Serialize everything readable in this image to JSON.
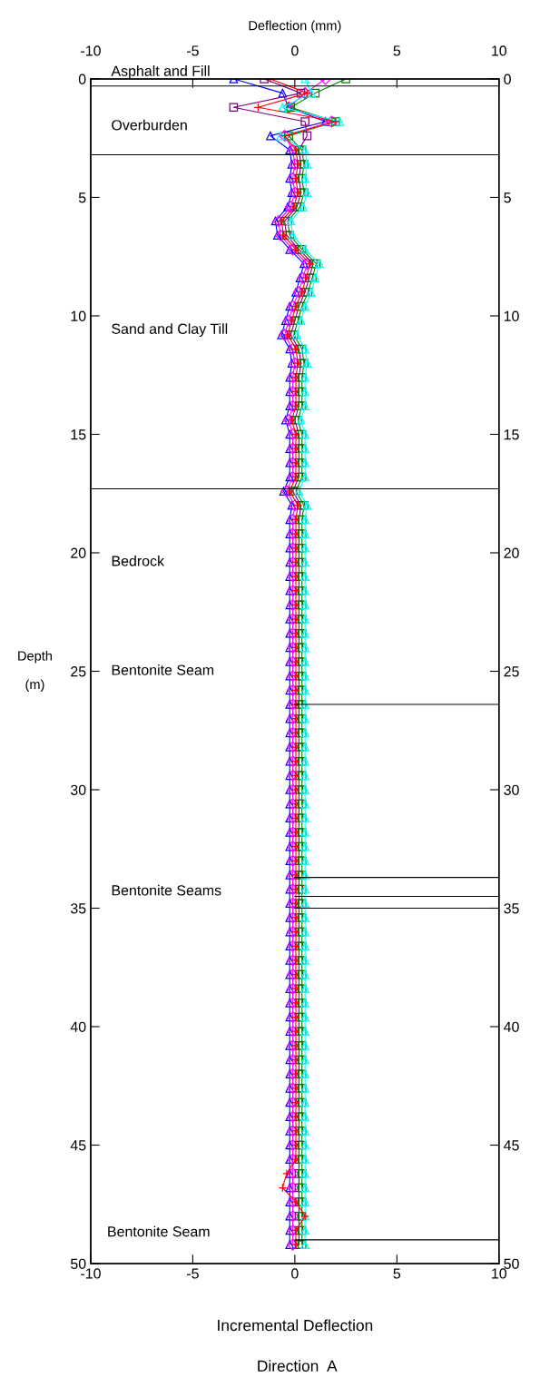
{
  "chart_data": {
    "type": "line",
    "x2label": "Deflection (mm)",
    "xlabel": "Incremental Deflection",
    "ylabel": "Depth\n\n(m)",
    "xlim": [
      -10,
      10
    ],
    "xticks": [
      -10,
      -5,
      0,
      5,
      10
    ],
    "x2lim": [
      -10,
      10
    ],
    "x2ticks": [
      -10,
      -5,
      0,
      5,
      10
    ],
    "ylim": [
      50,
      0
    ],
    "yticks": [
      0,
      5,
      10,
      15,
      20,
      25,
      30,
      35,
      40,
      45,
      50
    ],
    "y2lim": [
      50,
      0
    ],
    "y2ticks": [
      0,
      5,
      10,
      15,
      20,
      25,
      30,
      35,
      40,
      45,
      50
    ],
    "grid": false,
    "legend": false,
    "line_style": "solid",
    "series": [
      {
        "color": "#0000ff",
        "marker": "triangle",
        "values": [
          0,
          0.6,
          1.2,
          1.8,
          2.4,
          3,
          3.6,
          4.2,
          4.8,
          5.4,
          6,
          6.6,
          7.2,
          7.8,
          8.4,
          9,
          9.6,
          10.2,
          10.8,
          11.4,
          12,
          12.6,
          13.2,
          13.8,
          14.4,
          15,
          15.6,
          16.2,
          16.8,
          17.4,
          18,
          18.6,
          19.2,
          19.8,
          20.4,
          21,
          21.6,
          22.2,
          22.8,
          23.4,
          24,
          24.6,
          25.2,
          25.8,
          26.4,
          27,
          27.6,
          28.2,
          28.8,
          29.4,
          30,
          30.6,
          31.2,
          31.8,
          32.4,
          33,
          33.6,
          34.2,
          34.8,
          35.4,
          36,
          36.6,
          37.2,
          37.8,
          38.4,
          39,
          39.6,
          40.2,
          40.8,
          41.4,
          42,
          42.6,
          43.2,
          43.8,
          44.4,
          45,
          45.6,
          46.2,
          46.8,
          47.4,
          48,
          48.6,
          49.2
        ],
        "x": [
          -3.0,
          -0.6,
          -0.3,
          1.5,
          -1.2,
          -0.25,
          -0.15,
          -0.25,
          -0.15,
          -0.35,
          -0.95,
          -0.85,
          -0.25,
          0.45,
          0.25,
          0.05,
          -0.25,
          -0.45,
          -0.65,
          -0.25,
          -0.15,
          -0.25,
          -0.25,
          -0.25,
          -0.45,
          -0.25,
          -0.25,
          -0.25,
          -0.25,
          -0.55,
          -0.15,
          -0.25,
          -0.25,
          -0.25,
          -0.25,
          -0.25,
          -0.25,
          -0.25,
          -0.25,
          -0.25,
          -0.25,
          -0.25,
          -0.25,
          -0.25,
          -0.25,
          -0.25,
          -0.25,
          -0.25,
          -0.25,
          -0.25,
          -0.25,
          -0.25,
          -0.25,
          -0.25,
          -0.25,
          -0.25,
          -0.25,
          -0.25,
          -0.25,
          -0.25,
          -0.25,
          -0.25,
          -0.25,
          -0.25,
          -0.25,
          -0.25,
          -0.25,
          -0.25,
          -0.25,
          -0.25,
          -0.25,
          -0.25,
          -0.25,
          -0.25,
          -0.25,
          -0.25,
          -0.25,
          -0.25,
          -0.25,
          -0.25,
          -0.25,
          -0.25,
          -0.25
        ]
      },
      {
        "color": "#ff00ff",
        "marker": "diamond",
        "values": [
          0,
          0.6,
          1.2,
          1.8,
          2.4,
          3,
          3.6,
          4.2,
          4.8,
          5.4,
          6,
          6.6,
          7.2,
          7.8,
          8.4,
          9,
          9.6,
          10.2,
          10.8,
          11.4,
          12,
          12.6,
          13.2,
          13.8,
          14.4,
          15,
          15.6,
          16.2,
          16.8,
          17.4,
          18,
          18.6,
          19.2,
          19.8,
          20.4,
          21,
          21.6,
          22.2,
          22.8,
          23.4,
          24,
          24.6,
          25.2,
          25.8,
          26.4,
          27,
          27.6,
          28.2,
          28.8,
          29.4,
          30,
          30.6,
          31.2,
          31.8,
          32.4,
          33,
          33.6,
          34.2,
          34.8,
          35.4,
          36,
          36.6,
          37.2,
          37.8,
          38.4,
          39,
          39.6,
          40.2,
          40.8,
          41.4,
          42,
          42.6,
          43.2,
          43.8,
          44.4,
          45,
          45.6,
          46.2,
          46.8,
          47.4,
          48,
          48.6,
          49.2
        ],
        "x": [
          1.5,
          0.5,
          -0.3,
          1.8,
          -0.5,
          -0.1,
          0,
          -0.1,
          0,
          -0.2,
          -0.8,
          -0.7,
          -0.1,
          0.6,
          0.4,
          0.2,
          -0.1,
          -0.3,
          -0.5,
          -0.1,
          0,
          -0.1,
          -0.1,
          -0.1,
          -0.3,
          -0.1,
          -0.1,
          -0.1,
          -0.1,
          -0.4,
          0,
          -0.1,
          -0.1,
          -0.1,
          -0.1,
          -0.1,
          -0.1,
          -0.1,
          -0.1,
          -0.1,
          -0.1,
          -0.1,
          -0.1,
          -0.1,
          -0.1,
          -0.1,
          -0.1,
          -0.1,
          -0.1,
          -0.1,
          -0.1,
          -0.1,
          -0.1,
          -0.1,
          -0.1,
          -0.1,
          -0.1,
          -0.1,
          -0.1,
          -0.1,
          -0.1,
          -0.1,
          -0.1,
          -0.1,
          -0.1,
          -0.1,
          -0.1,
          -0.1,
          -0.1,
          -0.1,
          -0.1,
          -0.1,
          -0.1,
          -0.1,
          -0.1,
          -0.1,
          -0.1,
          -0.1,
          -0.1,
          -0.1,
          -0.1,
          -0.1,
          -0.1
        ]
      },
      {
        "color": "#800080",
        "marker": "square",
        "values": [
          0,
          0.6,
          1.2,
          1.8,
          2.4,
          3,
          3.6,
          4.2,
          4.8,
          5.4,
          6,
          6.6,
          7.2,
          7.8,
          8.4,
          9,
          9.6,
          10.2,
          10.8,
          11.4,
          12,
          12.6,
          13.2,
          13.8,
          14.4,
          15,
          15.6,
          16.2,
          16.8,
          17.4,
          18,
          18.6,
          19.2,
          19.8,
          20.4,
          21,
          21.6,
          22.2,
          22.8,
          23.4,
          24,
          24.6,
          25.2,
          25.8,
          26.4,
          27,
          27.6,
          28.2,
          28.8,
          29.4,
          30,
          30.6,
          31.2,
          31.8,
          32.4,
          33,
          33.6,
          34.2,
          34.8,
          35.4,
          36,
          36.6,
          37.2,
          37.8,
          38.4,
          39,
          39.6,
          40.2,
          40.8,
          41.4,
          42,
          42.6,
          43.2,
          43.8,
          44.4,
          45,
          45.6,
          46.2,
          46.8,
          47.4,
          48,
          48.6,
          49.2
        ],
        "x": [
          -1.5,
          0.3,
          -3.0,
          0.5,
          0.6,
          0.2,
          0.3,
          0.2,
          0.3,
          0.1,
          -0.5,
          -0.4,
          0.2,
          0.9,
          0.7,
          0.5,
          0.2,
          0,
          -0.2,
          0.2,
          0.3,
          0.2,
          0.2,
          0.2,
          0,
          0.2,
          0.2,
          0.2,
          0.2,
          -0.1,
          0.3,
          0.2,
          0.2,
          0.2,
          0.2,
          0.2,
          0.2,
          0.2,
          0.2,
          0.2,
          0.2,
          0.2,
          0.2,
          0.2,
          0.2,
          0.2,
          0.2,
          0.2,
          0.2,
          0.2,
          0.2,
          0.2,
          0.2,
          0.2,
          0.2,
          0.2,
          0.2,
          0.2,
          0.2,
          0.2,
          0.2,
          0.2,
          0.2,
          0.2,
          0.2,
          0.2,
          0.2,
          0.2,
          0.2,
          0.2,
          0.2,
          0.2,
          0.2,
          0.2,
          0.2,
          0.2,
          0.2,
          0.2,
          0.2,
          0.2,
          0.2,
          0.2,
          0.2
        ]
      },
      {
        "color": "#008000",
        "marker": "square",
        "values": [
          0,
          0.6,
          1.2,
          1.8,
          2.4,
          3,
          3.6,
          4.2,
          4.8,
          5.4,
          6,
          6.6,
          7.2,
          7.8,
          8.4,
          9,
          9.6,
          10.2,
          10.8,
          11.4,
          12,
          12.6,
          13.2,
          13.8,
          14.4,
          15,
          15.6,
          16.2,
          16.8,
          17.4,
          18,
          18.6,
          19.2,
          19.8,
          20.4,
          21,
          21.6,
          22.2,
          22.8,
          23.4,
          24,
          24.6,
          25.2,
          25.8,
          26.4,
          27,
          27.6,
          28.2,
          28.8,
          29.4,
          30,
          30.6,
          31.2,
          31.8,
          32.4,
          33,
          33.6,
          34.2,
          34.8,
          35.4,
          36,
          36.6,
          37.2,
          37.8,
          38.4,
          39,
          39.6,
          40.2,
          40.8,
          41.4,
          42,
          42.6,
          43.2,
          43.8,
          44.4,
          45,
          45.6,
          46.2,
          46.8,
          47.4,
          48,
          48.6,
          49.2
        ],
        "x": [
          2.5,
          1.0,
          -0.2,
          2.0,
          -0.3,
          0.35,
          0.45,
          0.35,
          0.45,
          0.25,
          -0.35,
          -0.25,
          0.35,
          1.05,
          0.85,
          0.65,
          0.35,
          0.15,
          -0.05,
          0.35,
          0.45,
          0.35,
          0.35,
          0.35,
          0.15,
          0.35,
          0.35,
          0.35,
          0.35,
          0.05,
          0.45,
          0.35,
          0.35,
          0.35,
          0.35,
          0.35,
          0.35,
          0.35,
          0.35,
          0.35,
          0.35,
          0.35,
          0.35,
          0.35,
          0.35,
          0.35,
          0.35,
          0.35,
          0.35,
          0.35,
          0.35,
          0.35,
          0.35,
          0.35,
          0.35,
          0.35,
          0.35,
          0.35,
          0.35,
          0.35,
          0.35,
          0.35,
          0.35,
          0.35,
          0.35,
          0.35,
          0.35,
          0.35,
          0.35,
          0.35,
          0.35,
          0.35,
          0.35,
          0.35,
          0.35,
          0.35,
          0.35,
          0.35,
          0.35,
          0.35,
          0.35,
          0.35,
          0.35
        ]
      },
      {
        "color": "#00ffff",
        "marker": "triangle",
        "values": [
          0,
          0.6,
          1.2,
          1.8,
          2.4,
          3,
          3.6,
          4.2,
          4.8,
          5.4,
          6,
          6.6,
          7.2,
          7.8,
          8.4,
          9,
          9.6,
          10.2,
          10.8,
          11.4,
          12,
          12.6,
          13.2,
          13.8,
          14.4,
          15,
          15.6,
          16.2,
          16.8,
          17.4,
          18,
          18.6,
          19.2,
          19.8,
          20.4,
          21,
          21.6,
          22.2,
          22.8,
          23.4,
          24,
          24.6,
          25.2,
          25.8,
          26.4,
          27,
          27.6,
          28.2,
          28.8,
          29.4,
          30,
          30.6,
          31.2,
          31.8,
          32.4,
          33,
          33.6,
          34.2,
          34.8,
          35.4,
          36,
          36.6,
          37.2,
          37.8,
          38.4,
          39,
          39.6,
          40.2,
          40.8,
          41.4,
          42,
          42.6,
          43.2,
          43.8,
          44.4,
          45,
          45.6,
          46.2,
          46.8,
          47.4,
          48,
          48.6,
          49.2
        ],
        "x": [
          0.5,
          0.8,
          -0.6,
          2.2,
          -0.7,
          0.5,
          0.6,
          0.5,
          0.6,
          0.4,
          -0.2,
          -0.1,
          0.5,
          1.2,
          1.0,
          0.8,
          0.5,
          0.3,
          0.1,
          0.5,
          0.6,
          0.5,
          0.5,
          0.5,
          0.3,
          0.5,
          0.5,
          0.5,
          0.5,
          0.2,
          0.6,
          0.5,
          0.5,
          0.5,
          0.5,
          0.5,
          0.5,
          0.5,
          0.5,
          0.5,
          0.5,
          0.5,
          0.5,
          0.5,
          0.5,
          0.5,
          0.5,
          0.5,
          0.5,
          0.5,
          0.5,
          0.5,
          0.5,
          0.5,
          0.5,
          0.5,
          0.5,
          0.5,
          0.5,
          0.5,
          0.5,
          0.5,
          0.5,
          0.5,
          0.5,
          0.5,
          0.5,
          0.5,
          0.5,
          0.5,
          0.5,
          0.5,
          0.5,
          0.5,
          0.5,
          0.5,
          0.5,
          0.5,
          0.5,
          0.5,
          0.5,
          0.5,
          0.5
        ]
      },
      {
        "color": "#ff0000",
        "marker": "cross",
        "values": [
          0,
          0.6,
          1.2,
          1.8,
          2.4,
          3,
          3.6,
          4.2,
          4.8,
          5.4,
          6,
          6.6,
          7.2,
          7.8,
          8.4,
          9,
          9.6,
          10.2,
          10.8,
          11.4,
          12,
          12.6,
          13.2,
          13.8,
          14.4,
          15,
          15.6,
          16.2,
          16.8,
          17.4,
          18,
          18.6,
          19.2,
          19.8,
          20.4,
          21,
          21.6,
          22.2,
          22.8,
          23.4,
          24,
          24.6,
          25.2,
          25.8,
          26.4,
          27,
          27.6,
          28.2,
          28.8,
          29.4,
          30,
          30.6,
          31.2,
          31.8,
          32.4,
          33,
          33.6,
          34.2,
          34.8,
          35.4,
          36,
          36.6,
          37.2,
          37.8,
          38.4,
          39,
          39.6,
          40.2,
          40.8,
          41.4,
          42,
          42.6,
          43.2,
          43.8,
          44.4,
          45,
          45.6,
          46.2,
          46.8,
          47.4,
          48,
          48.6,
          49.2
        ],
        "x": [
          -1.2,
          0.6,
          -1.8,
          2.0,
          -0.5,
          0.05,
          0.15,
          0.05,
          0.15,
          -0.05,
          -0.65,
          -0.55,
          0.05,
          0.75,
          0.55,
          0.35,
          0.05,
          -0.15,
          -0.35,
          0.05,
          0.15,
          0.05,
          0.05,
          0.05,
          -0.15,
          0.05,
          0.05,
          0.05,
          0.05,
          -0.25,
          0.15,
          0.05,
          0.05,
          0.05,
          0.05,
          0.05,
          0.05,
          0.05,
          0.05,
          0.05,
          0.05,
          0.05,
          0.05,
          0.05,
          0.05,
          0.05,
          0.05,
          0.05,
          0.05,
          0.05,
          0.05,
          0.05,
          0.05,
          0.05,
          0.05,
          0.05,
          0.05,
          0.05,
          0.05,
          0.05,
          0.05,
          0.05,
          0.05,
          0.05,
          0.05,
          0.05,
          0.05,
          0.05,
          0.05,
          0.05,
          0.05,
          0.05,
          0.05,
          0.05,
          0.05,
          0.05,
          0.05,
          -0.4,
          -0.6,
          0.05,
          0.5,
          0.05,
          0.05
        ]
      },
      {
        "color": "#000000",
        "marker": "none",
        "x": [
          0,
          10
        ],
        "values": [
          26.4,
          26.4
        ]
      },
      {
        "color": "#000000",
        "marker": "none",
        "x": [
          0,
          10
        ],
        "values": [
          33.7,
          33.7
        ]
      },
      {
        "color": "#000000",
        "marker": "none",
        "x": [
          0,
          10
        ],
        "values": [
          34.5,
          34.5
        ]
      },
      {
        "color": "#000000",
        "marker": "none",
        "x": [
          0,
          10
        ],
        "values": [
          35.0,
          35.0
        ]
      },
      {
        "color": "#000000",
        "marker": "none",
        "x": [
          0,
          10
        ],
        "values": [
          49.0,
          49.0
        ]
      }
    ],
    "ref_lines": [
      {
        "axis": "y",
        "value": 0.3,
        "color": "#000000"
      },
      {
        "axis": "y",
        "value": 3.2,
        "color": "#000000"
      },
      {
        "axis": "y",
        "value": 17.3,
        "color": "#000000"
      }
    ],
    "annotations": [
      "Asphalt and Fill",
      "Overburden",
      "Sand and Clay Till",
      "Bedrock",
      "Bentonite Seam",
      "Bentonite Seams",
      "Bentonite Seam",
      "Direction  A"
    ]
  }
}
